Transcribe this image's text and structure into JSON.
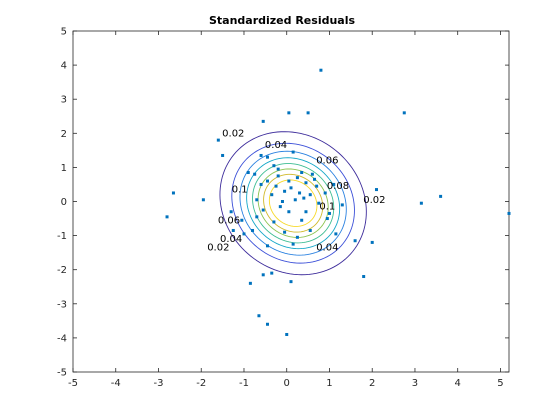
{
  "colors": {
    "background": "#ffffff",
    "axes": "#262626",
    "points": "#0072bd",
    "contour_levels": {
      "0.02": "#3d2c9b",
      "0.04": "#3c50d8",
      "0.06": "#2a81e0",
      "0.08": "#14a7c8",
      "0.1": "#3ebd93",
      "0.12": "#8cc34f",
      "0.14": "#d1ba2c",
      "0.16": "#f7d92a"
    }
  },
  "chart_data": {
    "type": "scatter",
    "title": "Standardized Residuals",
    "xlabel": "",
    "ylabel": "",
    "xlim": [
      -5,
      5.2
    ],
    "ylim": [
      -5,
      5
    ],
    "xticks": [
      "-5",
      "-4",
      "-3",
      "-2",
      "-1",
      "0",
      "1",
      "2",
      "3",
      "4",
      "5"
    ],
    "yticks": [
      "-5",
      "-4",
      "-3",
      "-2",
      "-1",
      "0",
      "1",
      "2",
      "3",
      "4",
      "5"
    ],
    "grid": false,
    "legend": "none",
    "series": [
      {
        "points": [
          [
            0.8,
            3.85
          ],
          [
            -0.55,
            2.35
          ],
          [
            0.05,
            2.6
          ],
          [
            0.5,
            2.6
          ],
          [
            2.75,
            2.6
          ],
          [
            -1.6,
            1.8
          ],
          [
            -1.5,
            1.35
          ],
          [
            -0.6,
            1.35
          ],
          [
            -0.45,
            1.3
          ],
          [
            0.15,
            1.45
          ],
          [
            -0.3,
            1.05
          ],
          [
            -0.9,
            0.85
          ],
          [
            -0.75,
            0.8
          ],
          [
            0.35,
            0.85
          ],
          [
            0.6,
            0.8
          ],
          [
            -0.2,
            0.75
          ],
          [
            0.25,
            0.7
          ],
          [
            -0.45,
            0.6
          ],
          [
            0.05,
            0.6
          ],
          [
            0.45,
            0.55
          ],
          [
            -0.6,
            0.5
          ],
          [
            -0.25,
            0.45
          ],
          [
            0.1,
            0.4
          ],
          [
            0.7,
            0.45
          ],
          [
            1.1,
            0.5
          ],
          [
            -0.05,
            0.3
          ],
          [
            0.3,
            0.25
          ],
          [
            -0.35,
            0.2
          ],
          [
            0.55,
            0.2
          ],
          [
            0.9,
            0.25
          ],
          [
            -2.65,
            0.25
          ],
          [
            2.1,
            0.35
          ],
          [
            3.15,
            -0.05
          ],
          [
            3.6,
            0.15
          ],
          [
            5.2,
            -0.35
          ],
          [
            -1.95,
            0.05
          ],
          [
            -0.7,
            0.05
          ],
          [
            -0.1,
            0.0
          ],
          [
            0.2,
            0.05
          ],
          [
            0.75,
            -0.05
          ],
          [
            1.3,
            -0.1
          ],
          [
            -1.3,
            -0.3
          ],
          [
            -0.55,
            -0.25
          ],
          [
            0.05,
            -0.3
          ],
          [
            0.45,
            -0.3
          ],
          [
            1.0,
            -0.35
          ],
          [
            -2.8,
            -0.45
          ],
          [
            -1.05,
            -0.55
          ],
          [
            -0.3,
            -0.6
          ],
          [
            0.35,
            -0.55
          ],
          [
            0.95,
            -0.5
          ],
          [
            -0.8,
            -0.85
          ],
          [
            -0.05,
            -0.9
          ],
          [
            0.55,
            -0.85
          ],
          [
            1.15,
            -0.95
          ],
          [
            1.6,
            -1.15
          ],
          [
            2.0,
            -1.2
          ],
          [
            -0.45,
            -1.3
          ],
          [
            0.15,
            -1.25
          ],
          [
            -0.35,
            -2.1
          ],
          [
            -0.55,
            -2.15
          ],
          [
            0.1,
            -2.35
          ],
          [
            1.8,
            -2.2
          ],
          [
            -0.85,
            -2.4
          ],
          [
            -0.65,
            -3.35
          ],
          [
            -0.45,
            -3.6
          ],
          [
            0.0,
            -3.9
          ],
          [
            -1.0,
            -0.95
          ],
          [
            -1.25,
            -0.85
          ],
          [
            -0.2,
            0.95
          ],
          [
            0.65,
            0.65
          ],
          [
            -0.7,
            -0.45
          ],
          [
            0.25,
            -1.05
          ],
          [
            -0.15,
            -0.15
          ],
          [
            0.4,
            0.1
          ]
        ]
      }
    ],
    "contour_levels": [
      0.02,
      0.04,
      0.06,
      0.08,
      0.1,
      0.12,
      0.14,
      0.16
    ],
    "contour_labels": [
      {
        "text": "0.02",
        "x": -1.25,
        "y": 2.0
      },
      {
        "text": "0.04",
        "x": -0.25,
        "y": 1.65
      },
      {
        "text": "0.06",
        "x": 0.95,
        "y": 1.2
      },
      {
        "text": "0.08",
        "x": 1.2,
        "y": 0.45
      },
      {
        "text": "0.1",
        "x": 0.95,
        "y": -0.15
      },
      {
        "text": "0.02",
        "x": 2.05,
        "y": 0.05
      },
      {
        "text": "0.04",
        "x": 0.95,
        "y": -1.35
      },
      {
        "text": "0.02",
        "x": -1.6,
        "y": -1.35
      },
      {
        "text": "0.04",
        "x": -1.3,
        "y": -1.1
      },
      {
        "text": "0.06",
        "x": -1.35,
        "y": -0.55
      },
      {
        "text": "0.1",
        "x": -1.1,
        "y": 0.35
      }
    ]
  }
}
